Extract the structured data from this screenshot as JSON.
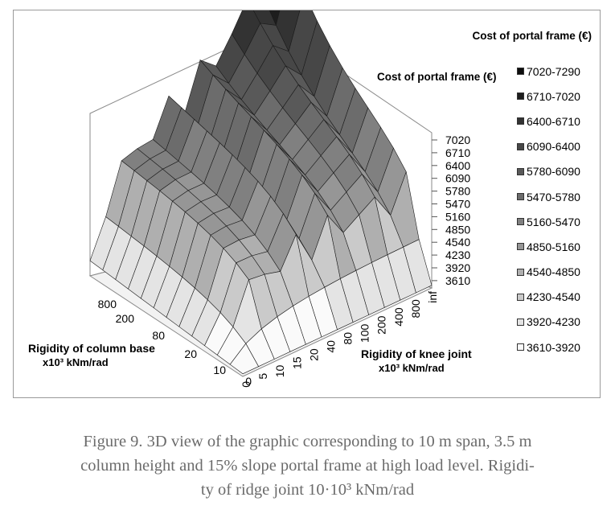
{
  "chart_data": {
    "type": "surface3d",
    "title": "Cost of portal frame (€)",
    "z_axis_title": "Cost of portal frame (€)",
    "z_ticks": [
      "7020",
      "6710",
      "6400",
      "6090",
      "5780",
      "5470",
      "5160",
      "4850",
      "4540",
      "4230",
      "3920",
      "3610"
    ],
    "zlim": [
      3610,
      7290
    ],
    "x_axis": {
      "title": "Rigidity of knee joint",
      "unit": "x10³ kNm/rad",
      "ticks": [
        "0",
        "5",
        "10",
        "15",
        "20",
        "40",
        "80",
        "100",
        "200",
        "400",
        "800",
        "inf"
      ]
    },
    "y_axis": {
      "title": "Rigidity of column base",
      "unit": "x10³ kNm/rad",
      "ticks": [
        "0",
        "10",
        "20",
        "80",
        "200",
        "800"
      ]
    },
    "legend": [
      {
        "label": "7020-7290",
        "color": "#0d0d0d"
      },
      {
        "label": "6710-7020",
        "color": "#1d1d1d"
      },
      {
        "label": "6400-6710",
        "color": "#333333"
      },
      {
        "label": "6090-6400",
        "color": "#474747"
      },
      {
        "label": "5780-6090",
        "color": "#595959"
      },
      {
        "label": "5470-5780",
        "color": "#6c6c6c"
      },
      {
        "label": "5160-5470",
        "color": "#808080"
      },
      {
        "label": "4850-5160",
        "color": "#969696"
      },
      {
        "label": "4540-4850",
        "color": "#afafaf"
      },
      {
        "label": "4230-4540",
        "color": "#cacaca"
      },
      {
        "label": "3920-4230",
        "color": "#e4e4e4"
      },
      {
        "label": "3610-3920",
        "color": "#fafafa"
      }
    ],
    "grid": true,
    "legend_position": "right"
  },
  "caption": {
    "line1": "Figure 9. 3D view of the graphic corresponding to 10 m span, 3.5 m",
    "line2": "column height and 15% slope portal frame at high load level. Rigidi-",
    "line3": "ty of ridge joint 10·10³ kNm/rad"
  }
}
